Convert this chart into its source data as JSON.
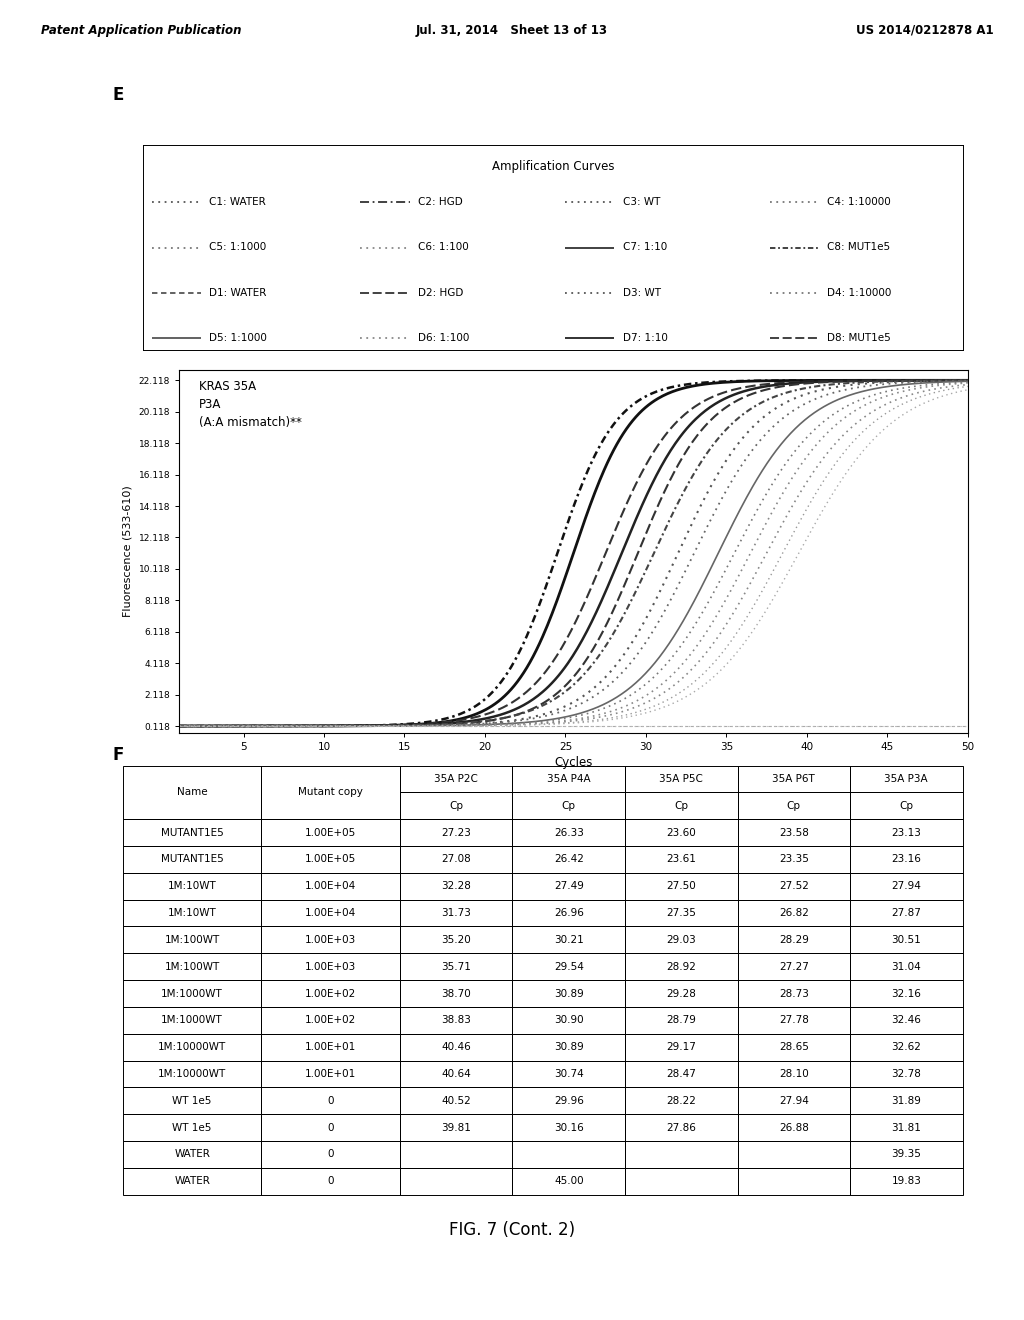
{
  "header_left": "Patent Application Publication",
  "header_mid": "Jul. 31, 2014   Sheet 13 of 13",
  "header_right": "US 2014/0212878 A1",
  "section_E_label": "E",
  "section_F_label": "F",
  "fig_caption": "FIG. 7 (Cont. 2)",
  "legend_title": "Amplification Curves",
  "legend_entries": [
    {
      "label": "C1: WATER",
      "linestyle": "dotted",
      "color": "#555555",
      "row": 0,
      "col": 0
    },
    {
      "label": "C2: HGD",
      "linestyle": "dashdot",
      "color": "#333333",
      "row": 0,
      "col": 1
    },
    {
      "label": "C3: WT",
      "linestyle": "dotted",
      "color": "#555555",
      "row": 0,
      "col": 2
    },
    {
      "label": "C4: 1:10000",
      "linestyle": "dotted",
      "color": "#777777",
      "row": 0,
      "col": 3
    },
    {
      "label": "C5: 1:1000",
      "linestyle": "dotted",
      "color": "#777777",
      "row": 1,
      "col": 0
    },
    {
      "label": "C6: 1:100",
      "linestyle": "dotted",
      "color": "#888888",
      "row": 1,
      "col": 1
    },
    {
      "label": "C7: 1:10",
      "linestyle": "solid",
      "color": "#333333",
      "row": 1,
      "col": 2
    },
    {
      "label": "C8: MUT1e5",
      "linestyle": "dashdot2",
      "color": "#333333",
      "row": 1,
      "col": 3
    },
    {
      "label": "D1: WATER",
      "linestyle": "dashed",
      "color": "#555555",
      "row": 2,
      "col": 0
    },
    {
      "label": "D2: HGD",
      "linestyle": "dashed2",
      "color": "#333333",
      "row": 2,
      "col": 1
    },
    {
      "label": "D3: WT",
      "linestyle": "dotted",
      "color": "#555555",
      "row": 2,
      "col": 2
    },
    {
      "label": "D4: 1:10000",
      "linestyle": "dotted",
      "color": "#777777",
      "row": 2,
      "col": 3
    },
    {
      "label": "D5: 1:1000",
      "linestyle": "solid",
      "color": "#555555",
      "row": 3,
      "col": 0
    },
    {
      "label": "D6: 1:100",
      "linestyle": "dotted",
      "color": "#888888",
      "row": 3,
      "col": 1
    },
    {
      "label": "D7: 1:10",
      "linestyle": "solid2",
      "color": "#222222",
      "row": 3,
      "col": 2
    },
    {
      "label": "D8: MUT1e5",
      "linestyle": "dashed3",
      "color": "#333333",
      "row": 3,
      "col": 3
    }
  ],
  "graph_ylabel": "Fluorescence (533-610)",
  "graph_xlabel": "Cycles",
  "graph_title_text": "KRAS 35A\nP3A\n(A:A mismatch)**",
  "yticks": [
    0.118,
    2.118,
    4.118,
    6.118,
    8.118,
    10.118,
    12.118,
    14.118,
    16.118,
    18.118,
    20.118,
    22.118
  ],
  "ymax": 22.8,
  "ymin": -0.3,
  "xmin": 1,
  "xmax": 50,
  "xticks": [
    5,
    10,
    15,
    20,
    25,
    30,
    35,
    40,
    45,
    50
  ],
  "curves": [
    {
      "name": "C8_MUT1e5",
      "cp": 24.5,
      "slope": 0.55,
      "linestyle": "dashdot2",
      "color": "#111111",
      "lw": 1.8
    },
    {
      "name": "C7_1:10",
      "cp": 25.5,
      "slope": 0.55,
      "linestyle": "solid",
      "color": "#111111",
      "lw": 2.0
    },
    {
      "name": "D8_MUT1e5",
      "cp": 27.5,
      "slope": 0.45,
      "linestyle": "dashed3",
      "color": "#333333",
      "lw": 1.5
    },
    {
      "name": "D7_1:10",
      "cp": 28.5,
      "slope": 0.45,
      "linestyle": "solid2",
      "color": "#222222",
      "lw": 1.8
    },
    {
      "name": "D2_HGD",
      "cp": 29.5,
      "slope": 0.45,
      "linestyle": "dashed2",
      "color": "#333333",
      "lw": 1.5
    },
    {
      "name": "C2_HGD",
      "cp": 30.5,
      "slope": 0.4,
      "linestyle": "dashdot2",
      "color": "#444444",
      "lw": 1.5
    },
    {
      "name": "D6_1:100",
      "cp": 32.0,
      "slope": 0.4,
      "linestyle": "dotted",
      "color": "#555555",
      "lw": 1.5
    },
    {
      "name": "C6_1:100",
      "cp": 33.0,
      "slope": 0.38,
      "linestyle": "dotted",
      "color": "#666666",
      "lw": 1.3
    },
    {
      "name": "D5_1:1000",
      "cp": 34.5,
      "slope": 0.38,
      "linestyle": "solid",
      "color": "#666666",
      "lw": 1.2
    },
    {
      "name": "C5_1:1000",
      "cp": 35.5,
      "slope": 0.36,
      "linestyle": "dotted",
      "color": "#777777",
      "lw": 1.2
    },
    {
      "name": "D3_WT",
      "cp": 36.5,
      "slope": 0.36,
      "linestyle": "dotted",
      "color": "#888888",
      "lw": 1.2
    },
    {
      "name": "C3_WT",
      "cp": 37.5,
      "slope": 0.35,
      "linestyle": "dotted",
      "color": "#888888",
      "lw": 1.2
    },
    {
      "name": "D4_1:10000",
      "cp": 38.5,
      "slope": 0.35,
      "linestyle": "dotted",
      "color": "#999999",
      "lw": 1.0
    },
    {
      "name": "C4_1:10000",
      "cp": 39.5,
      "slope": 0.34,
      "linestyle": "dotted",
      "color": "#aaaaaa",
      "lw": 1.0
    },
    {
      "name": "D1_WATER",
      "cp": 999,
      "slope": 0.35,
      "linestyle": "dashed",
      "color": "#aaaaaa",
      "lw": 0.8
    },
    {
      "name": "C1_WATER",
      "cp": 999,
      "slope": 0.35,
      "linestyle": "dotted",
      "color": "#bbbbbb",
      "lw": 0.8
    }
  ],
  "table_col_headers_row1": [
    "",
    "",
    "35A P2C",
    "35A P4A",
    "35A P5C",
    "35A P6T",
    "35A P3A"
  ],
  "table_col_headers_row2": [
    "Name",
    "Mutant copy",
    "Cp",
    "Cp",
    "Cp",
    "Cp",
    "Cp"
  ],
  "table_data": [
    [
      "MUTANT1E5",
      "1.00E+05",
      "27.23",
      "26.33",
      "23.60",
      "23.58",
      "23.13"
    ],
    [
      "MUTANT1E5",
      "1.00E+05",
      "27.08",
      "26.42",
      "23.61",
      "23.35",
      "23.16"
    ],
    [
      "1M:10WT",
      "1.00E+04",
      "32.28",
      "27.49",
      "27.50",
      "27.52",
      "27.94"
    ],
    [
      "1M:10WT",
      "1.00E+04",
      "31.73",
      "26.96",
      "27.35",
      "26.82",
      "27.87"
    ],
    [
      "1M:100WT",
      "1.00E+03",
      "35.20",
      "30.21",
      "29.03",
      "28.29",
      "30.51"
    ],
    [
      "1M:100WT",
      "1.00E+03",
      "35.71",
      "29.54",
      "28.92",
      "27.27",
      "31.04"
    ],
    [
      "1M:1000WT",
      "1.00E+02",
      "38.70",
      "30.89",
      "29.28",
      "28.73",
      "32.16"
    ],
    [
      "1M:1000WT",
      "1.00E+02",
      "38.83",
      "30.90",
      "28.79",
      "27.78",
      "32.46"
    ],
    [
      "1M:10000WT",
      "1.00E+01",
      "40.46",
      "30.89",
      "29.17",
      "28.65",
      "32.62"
    ],
    [
      "1M:10000WT",
      "1.00E+01",
      "40.64",
      "30.74",
      "28.47",
      "28.10",
      "32.78"
    ],
    [
      "WT 1e5",
      "0",
      "40.52",
      "29.96",
      "28.22",
      "27.94",
      "31.89"
    ],
    [
      "WT 1e5",
      "0",
      "39.81",
      "30.16",
      "27.86",
      "26.88",
      "31.81"
    ],
    [
      "WATER",
      "0",
      "",
      "",
      "",
      "",
      "39.35"
    ],
    [
      "WATER",
      "0",
      "",
      "45.00",
      "",
      "",
      "19.83"
    ]
  ],
  "background_color": "#ffffff",
  "fig_width": 10.24,
  "fig_height": 13.2,
  "dpi": 100
}
